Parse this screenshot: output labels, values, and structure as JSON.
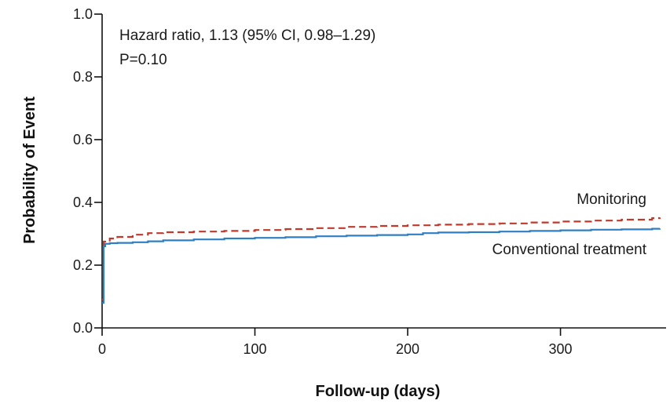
{
  "chart_data": {
    "type": "line",
    "title": "",
    "xlabel": "Follow-up (days)",
    "ylabel": "Probability of Event",
    "xlim": [
      0,
      365
    ],
    "ylim": [
      0.0,
      1.0
    ],
    "x_ticks": [
      "0",
      "100",
      "200",
      "300"
    ],
    "y_ticks": [
      "0.0",
      "0.2",
      "0.4",
      "0.6",
      "0.8",
      "1.0"
    ],
    "grid": false,
    "annotations": [
      "Hazard ratio, 1.13 (95% CI, 0.98–1.29)",
      "P=0.10"
    ],
    "series": [
      {
        "name": "Monitoring",
        "color": "#c0392b",
        "line_style": "dashed",
        "x": [
          0,
          1,
          5,
          10,
          20,
          30,
          40,
          60,
          80,
          100,
          120,
          140,
          160,
          180,
          200,
          220,
          240,
          260,
          280,
          300,
          320,
          340,
          360,
          365
        ],
        "y": [
          0.09,
          0.275,
          0.285,
          0.29,
          0.297,
          0.302,
          0.305,
          0.307,
          0.309,
          0.312,
          0.315,
          0.318,
          0.322,
          0.325,
          0.327,
          0.329,
          0.331,
          0.333,
          0.336,
          0.339,
          0.342,
          0.345,
          0.35,
          0.352
        ]
      },
      {
        "name": "Conventional treatment",
        "color": "#2e7fc2",
        "line_style": "solid",
        "x": [
          0,
          1,
          2,
          5,
          10,
          20,
          30,
          40,
          60,
          80,
          100,
          120,
          140,
          160,
          180,
          200,
          210,
          220,
          240,
          260,
          280,
          300,
          320,
          340,
          360,
          365
        ],
        "y": [
          0.08,
          0.26,
          0.268,
          0.27,
          0.271,
          0.273,
          0.276,
          0.279,
          0.282,
          0.285,
          0.287,
          0.289,
          0.292,
          0.294,
          0.296,
          0.298,
          0.302,
          0.304,
          0.305,
          0.307,
          0.309,
          0.311,
          0.313,
          0.314,
          0.316,
          0.317
        ]
      }
    ]
  }
}
